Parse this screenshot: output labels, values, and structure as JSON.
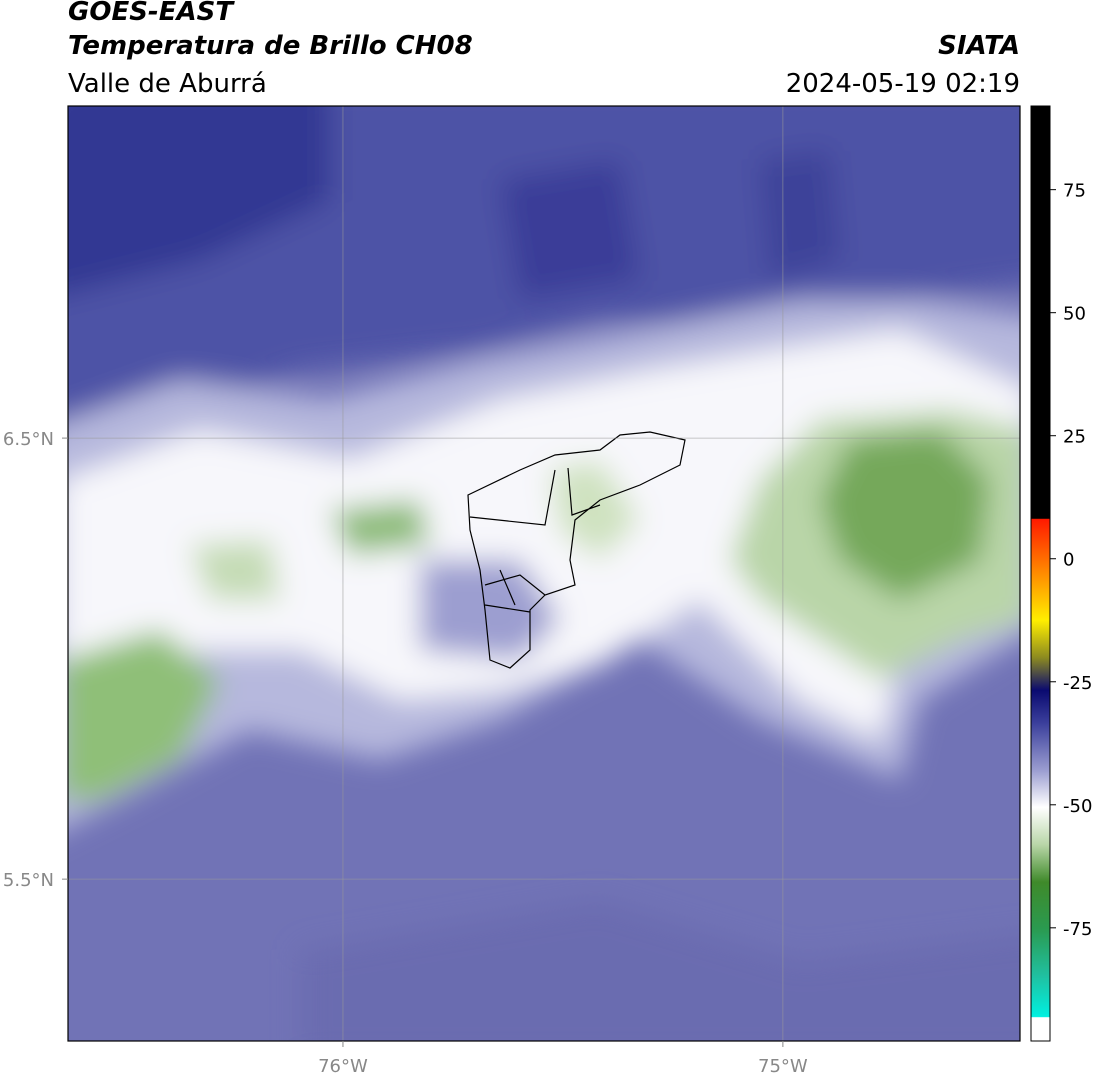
{
  "chart_data": {
    "type": "map",
    "title": "GOES-EAST",
    "subtitle": "Temperatura de Brillo CH08",
    "region": "Valle de Aburrá",
    "source": "SIATA",
    "datetime": "2024-05-19 02:19",
    "xlim": [
      -76.625,
      -74.461
    ],
    "ylim": [
      5.133,
      7.253
    ],
    "xticks": [
      {
        "value": -76,
        "label": "76°W"
      },
      {
        "value": -75,
        "label": "75°W"
      }
    ],
    "yticks": [
      {
        "value": 6.5,
        "label": "6.5°N"
      },
      {
        "value": 5.5,
        "label": "5.5°N"
      }
    ],
    "grid": true,
    "colorbar": {
      "lim": [
        -98,
        92
      ],
      "ticks": [
        75,
        50,
        25,
        0,
        -25,
        -50,
        -75
      ]
    }
  }
}
